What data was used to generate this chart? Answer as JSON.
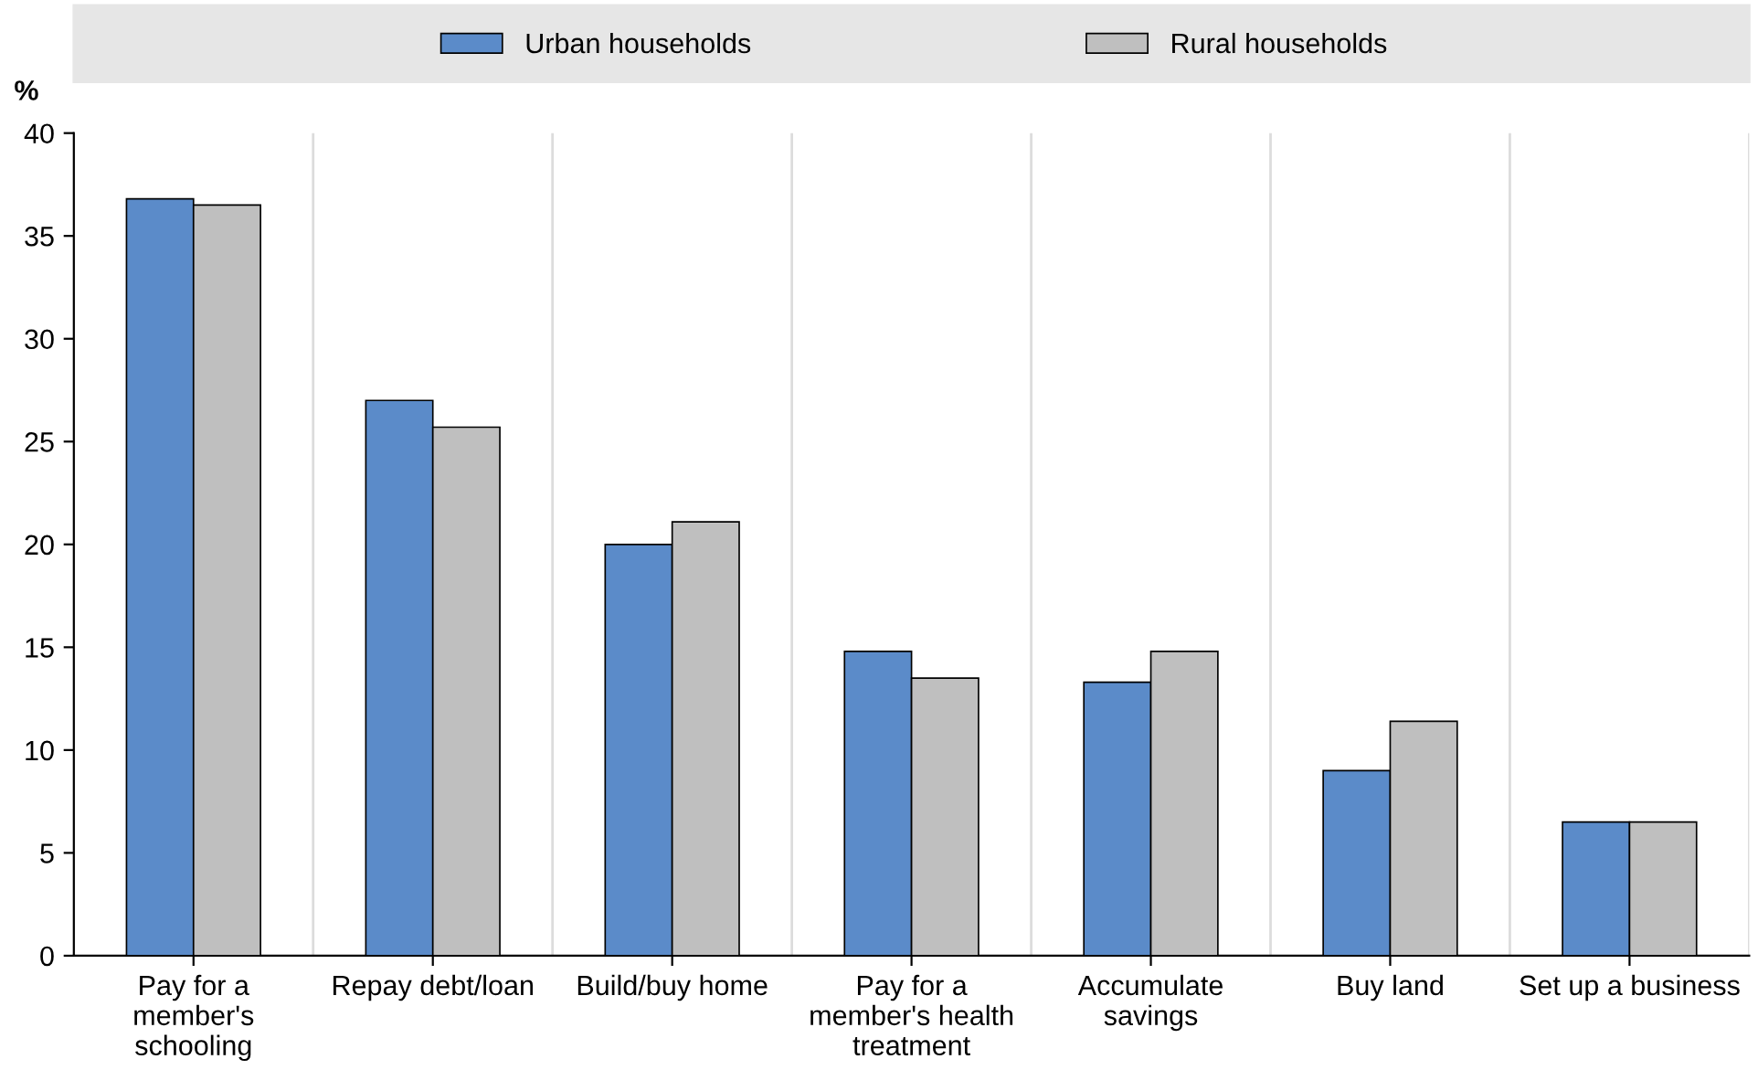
{
  "chart_data": {
    "type": "bar",
    "ylabel": "%",
    "categories": [
      "Pay for a\nmember's\nschooling",
      "Repay debt/loan",
      "Build/buy home",
      "Pay for a\nmember's health\ntreatment",
      "Accumulate\nsavings",
      "Buy land",
      "Set up a business"
    ],
    "series": [
      {
        "name": "Urban households",
        "color": "#5b8bc9",
        "values": [
          36.8,
          27.0,
          20.0,
          14.8,
          13.3,
          9.0,
          6.5
        ]
      },
      {
        "name": "Rural households",
        "color": "#bfbfbf",
        "values": [
          36.5,
          25.7,
          21.1,
          13.5,
          14.8,
          11.4,
          6.5
        ]
      }
    ],
    "ylim": [
      0,
      40
    ],
    "yticks": [
      0,
      5,
      10,
      15,
      20,
      25,
      30,
      35,
      40
    ],
    "grid": "x",
    "legend": "top"
  }
}
